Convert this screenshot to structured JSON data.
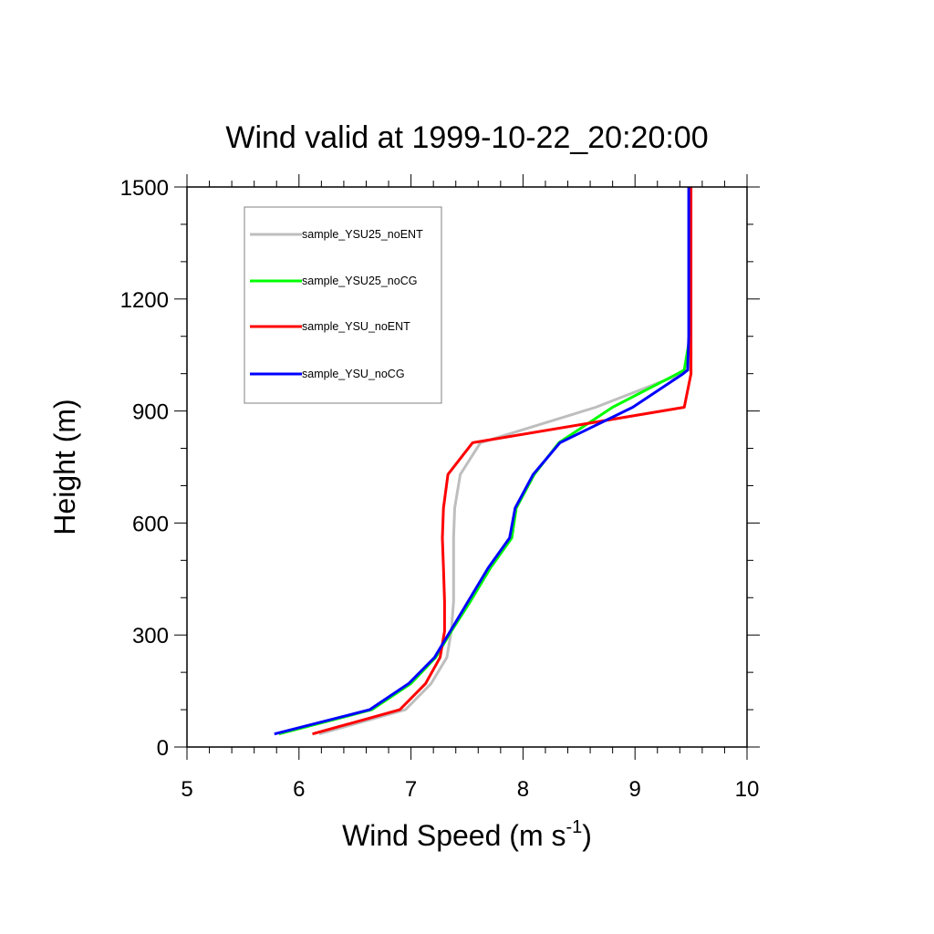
{
  "chart_data": {
    "type": "line",
    "title": "Wind valid at 1999-10-22_20:20:00",
    "xlabel": "Wind Speed (m s",
    "xlabel_superscript": "-1",
    "xlabel_suffix": ")",
    "ylabel": "Height (m)",
    "xlim": [
      5,
      10
    ],
    "ylim": [
      0,
      1500
    ],
    "xticks": [
      5,
      6,
      7,
      8,
      9,
      10
    ],
    "yticks": [
      0,
      300,
      600,
      900,
      1200,
      1500
    ],
    "grid": false,
    "legend_position": "top-left",
    "series": [
      {
        "name": "sample_YSU25_noENT",
        "color": "#bebebe",
        "points": [
          [
            6.18,
            35
          ],
          [
            6.95,
            100
          ],
          [
            7.18,
            170
          ],
          [
            7.32,
            240
          ],
          [
            7.36,
            310
          ],
          [
            7.38,
            390
          ],
          [
            7.38,
            480
          ],
          [
            7.38,
            560
          ],
          [
            7.39,
            640
          ],
          [
            7.44,
            730
          ],
          [
            7.62,
            815
          ],
          [
            8.65,
            910
          ],
          [
            9.42,
            1000
          ],
          [
            9.48,
            1010
          ],
          [
            9.49,
            1100
          ],
          [
            9.49,
            1200
          ],
          [
            9.49,
            1300
          ],
          [
            9.49,
            1400
          ],
          [
            9.49,
            1500
          ]
        ]
      },
      {
        "name": "sample_YSU25_noCG",
        "color": "#00ff00",
        "points": [
          [
            5.82,
            35
          ],
          [
            6.65,
            100
          ],
          [
            7.0,
            170
          ],
          [
            7.22,
            240
          ],
          [
            7.36,
            310
          ],
          [
            7.53,
            390
          ],
          [
            7.71,
            480
          ],
          [
            7.9,
            560
          ],
          [
            7.94,
            640
          ],
          [
            8.1,
            730
          ],
          [
            8.32,
            815
          ],
          [
            8.8,
            910
          ],
          [
            9.38,
            1000
          ],
          [
            9.44,
            1010
          ],
          [
            9.49,
            1100
          ],
          [
            9.49,
            1200
          ],
          [
            9.49,
            1300
          ],
          [
            9.49,
            1400
          ],
          [
            9.49,
            1500
          ]
        ]
      },
      {
        "name": "sample_YSU_noENT",
        "color": "#ff0000",
        "points": [
          [
            6.12,
            35
          ],
          [
            6.9,
            100
          ],
          [
            7.13,
            170
          ],
          [
            7.26,
            240
          ],
          [
            7.3,
            310
          ],
          [
            7.3,
            390
          ],
          [
            7.29,
            480
          ],
          [
            7.28,
            560
          ],
          [
            7.29,
            640
          ],
          [
            7.33,
            730
          ],
          [
            7.55,
            815
          ],
          [
            9.44,
            910
          ],
          [
            9.5,
            1000
          ],
          [
            9.5,
            1010
          ],
          [
            9.5,
            1100
          ],
          [
            9.5,
            1200
          ],
          [
            9.5,
            1300
          ],
          [
            9.5,
            1400
          ],
          [
            9.5,
            1500
          ]
        ]
      },
      {
        "name": "sample_YSU_noCG",
        "color": "#0000ff",
        "points": [
          [
            5.78,
            35
          ],
          [
            6.63,
            100
          ],
          [
            6.98,
            170
          ],
          [
            7.21,
            240
          ],
          [
            7.35,
            310
          ],
          [
            7.51,
            390
          ],
          [
            7.69,
            480
          ],
          [
            7.88,
            560
          ],
          [
            7.93,
            640
          ],
          [
            8.09,
            730
          ],
          [
            8.33,
            815
          ],
          [
            8.98,
            910
          ],
          [
            9.43,
            1000
          ],
          [
            9.47,
            1010
          ],
          [
            9.48,
            1100
          ],
          [
            9.48,
            1200
          ],
          [
            9.48,
            1300
          ],
          [
            9.48,
            1400
          ],
          [
            9.48,
            1500
          ]
        ]
      }
    ]
  }
}
